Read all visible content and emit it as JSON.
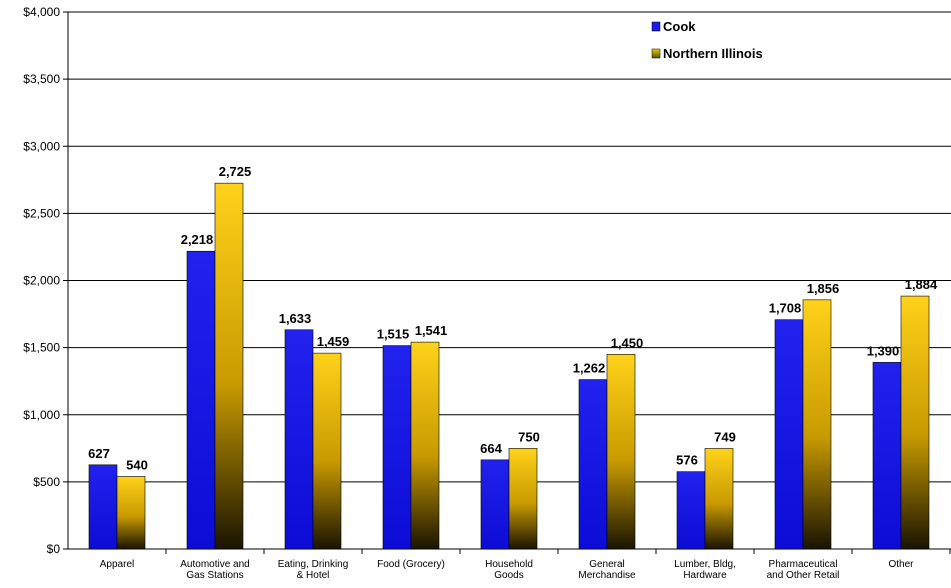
{
  "chart_data": {
    "type": "bar",
    "categories": [
      [
        "Apparel"
      ],
      [
        "Automotive and",
        "Gas Stations"
      ],
      [
        "Eating, Drinking",
        "& Hotel"
      ],
      [
        "Food (Grocery)"
      ],
      [
        "Household",
        "Goods"
      ],
      [
        "General",
        "Merchandise"
      ],
      [
        "Lumber, Bldg,",
        "Hardware"
      ],
      [
        "Pharmaceutical",
        "and Other Retail"
      ],
      [
        "Other"
      ]
    ],
    "series": [
      {
        "name": "Cook",
        "values": [
          627,
          2218,
          1633,
          1515,
          664,
          1262,
          576,
          1708,
          1390
        ],
        "labels": [
          "627",
          "2,218",
          "1,633",
          "1,515",
          "664",
          "1,262",
          "576",
          "1,708",
          "1,390"
        ],
        "color": "#1a1ae6"
      },
      {
        "name": "Northern Illinois",
        "values": [
          540,
          2725,
          1459,
          1541,
          750,
          1450,
          749,
          1856,
          1884
        ],
        "labels": [
          "540",
          "2,725",
          "1,459",
          "1,541",
          "750",
          "1,450",
          "749",
          "1,856",
          "1,884"
        ],
        "color": "#f2c200"
      }
    ],
    "y_ticks": [
      "$0",
      "$500",
      "$1,000",
      "$1,500",
      "$2,000",
      "$2,500",
      "$3,000",
      "$3,500",
      "$4,000"
    ],
    "ylim": [
      0,
      4000
    ],
    "grid": true,
    "legend": "top-right"
  }
}
